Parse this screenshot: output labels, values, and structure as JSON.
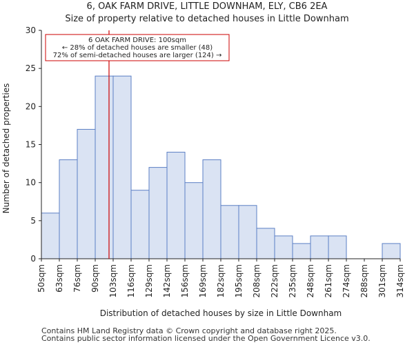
{
  "chart_data": {
    "type": "bar",
    "title": "6, OAK FARM DRIVE, LITTLE DOWNHAM, ELY, CB6 2EA",
    "subtitle": "Size of property relative to detached houses in Little Downham",
    "xlabel": "Distribution of detached houses by size in Little Downham",
    "ylabel": "Number of detached properties",
    "bin_edges": [
      50,
      63,
      76,
      90,
      103,
      116,
      129,
      142,
      156,
      169,
      182,
      195,
      208,
      222,
      235,
      248,
      261,
      274,
      288,
      301,
      314
    ],
    "tick_labels": [
      "50sqm",
      "63sqm",
      "76sqm",
      "90sqm",
      "103sqm",
      "116sqm",
      "129sqm",
      "142sqm",
      "156sqm",
      "169sqm",
      "182sqm",
      "195sqm",
      "208sqm",
      "222sqm",
      "235sqm",
      "248sqm",
      "261sqm",
      "274sqm",
      "288sqm",
      "301sqm",
      "314sqm"
    ],
    "values": [
      6,
      13,
      17,
      24,
      24,
      9,
      12,
      14,
      10,
      13,
      7,
      7,
      4,
      3,
      2,
      3,
      3,
      0,
      0,
      2
    ],
    "ylim": [
      0,
      30
    ],
    "yticks": [
      0,
      5,
      10,
      15,
      20,
      25,
      30
    ],
    "bar_fill": "#dae3f3",
    "bar_edge": "#5b7fc4",
    "marker": {
      "value": 100,
      "color": "#cc0000",
      "annotation": [
        "6 OAK FARM DRIVE: 100sqm",
        "← 28% of detached houses are smaller (48)",
        "72% of semi-detached houses are larger (124) →"
      ]
    }
  },
  "footer": {
    "line1": "Contains HM Land Registry data © Crown copyright and database right 2025.",
    "line2": "Contains public sector information licensed under the Open Government Licence v3.0."
  }
}
